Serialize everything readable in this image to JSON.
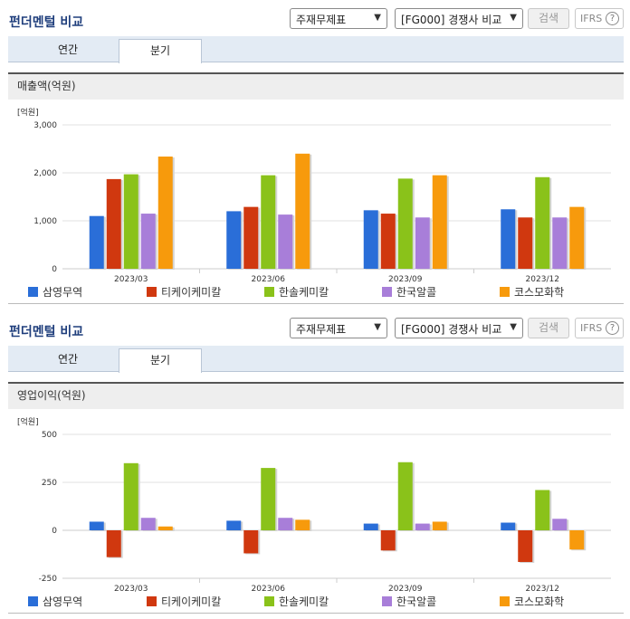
{
  "header": {
    "title": "펀더멘털 비교",
    "statement_select": "주재무제표",
    "company_select": "[FG000] 경쟁사 비교",
    "search_label": "검색",
    "ifrs_label": "IFRS",
    "help_glyph": "?"
  },
  "tabs": {
    "annual": "연간",
    "quarterly": "분기"
  },
  "series_colors": [
    "#2a6ed8",
    "#d0380f",
    "#8ac21a",
    "#a87ed9",
    "#f79a0c"
  ],
  "legend": [
    "삼영무역",
    "티케이케미칼",
    "한솔케미칼",
    "한국알콜",
    "코스모화학"
  ],
  "chart_data": [
    {
      "type": "bar",
      "title": "매출액(억원)",
      "unit_label": "[억원]",
      "categories": [
        "2023/03",
        "2023/06",
        "2023/09",
        "2023/12"
      ],
      "ylim": [
        0,
        3000
      ],
      "yticks": [
        0,
        1000,
        2000,
        3000
      ],
      "ytick_labels": [
        "0",
        "1,000",
        "2,000",
        "3,000"
      ],
      "grid": true,
      "legend_position": "bottom",
      "series": [
        {
          "name": "삼영무역",
          "values": [
            1100,
            1200,
            1220,
            1240
          ]
        },
        {
          "name": "티케이케미칼",
          "values": [
            1870,
            1290,
            1150,
            1070
          ]
        },
        {
          "name": "한솔케미칼",
          "values": [
            1970,
            1950,
            1880,
            1910
          ]
        },
        {
          "name": "한국알콜",
          "values": [
            1150,
            1130,
            1070,
            1070
          ]
        },
        {
          "name": "코스모화학",
          "values": [
            2340,
            2400,
            1950,
            1290
          ]
        }
      ]
    },
    {
      "type": "bar",
      "title": "영업이익(억원)",
      "unit_label": "[억원]",
      "categories": [
        "2023/03",
        "2023/06",
        "2023/09",
        "2023/12"
      ],
      "ylim": [
        -250,
        500
      ],
      "yticks": [
        -250,
        0,
        250,
        500
      ],
      "ytick_labels": [
        "-250",
        "0",
        "250",
        "500"
      ],
      "grid": true,
      "legend_position": "bottom",
      "series": [
        {
          "name": "삼영무역",
          "values": [
            45,
            50,
            35,
            40
          ]
        },
        {
          "name": "티케이케미칼",
          "values": [
            -140,
            -120,
            -105,
            -165
          ]
        },
        {
          "name": "한솔케미칼",
          "values": [
            350,
            325,
            355,
            210
          ]
        },
        {
          "name": "한국알콜",
          "values": [
            65,
            65,
            35,
            60
          ]
        },
        {
          "name": "코스모화학",
          "values": [
            20,
            55,
            45,
            -100
          ]
        }
      ]
    }
  ]
}
